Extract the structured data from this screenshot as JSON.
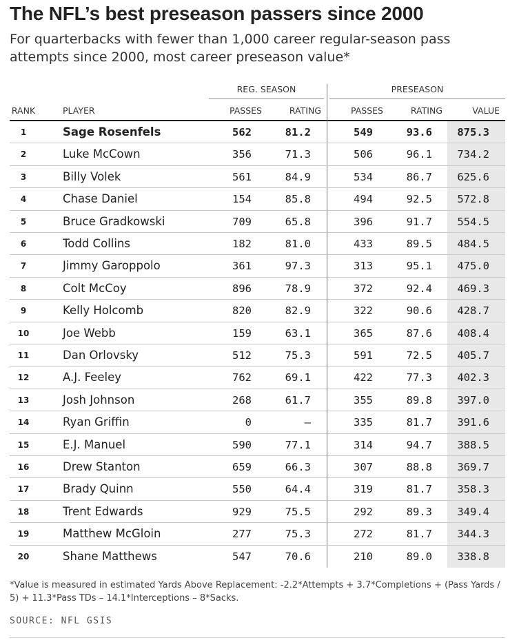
{
  "title": "The NFL’s best preseason passers since 2000",
  "subtitle": "For quarterbacks with fewer than 1,000 career regular-season pass attempts since 2000, most career preseason value*",
  "groups": {
    "reg_season": "REG. SEASON",
    "preseason": "PRESEASON"
  },
  "columns": {
    "rank": "RANK",
    "player": "PLAYER",
    "reg_passes": "PASSES",
    "reg_rating": "RATING",
    "pre_passes": "PASSES",
    "pre_rating": "RATING",
    "value": "VALUE"
  },
  "chart_data": {
    "type": "table",
    "title": "The NFL’s best preseason passers since 2000",
    "columns": [
      "RANK",
      "PLAYER",
      "REG. SEASON PASSES",
      "REG. SEASON RATING",
      "PRESEASON PASSES",
      "PRESEASON RATING",
      "VALUE"
    ],
    "rows": [
      {
        "rank": "1",
        "player": "Sage Rosenfels",
        "reg_passes": "562",
        "reg_rating": "81.2",
        "pre_passes": "549",
        "pre_rating": "93.6",
        "value": "875.3"
      },
      {
        "rank": "2",
        "player": "Luke McCown",
        "reg_passes": "356",
        "reg_rating": "71.3",
        "pre_passes": "506",
        "pre_rating": "96.1",
        "value": "734.2"
      },
      {
        "rank": "3",
        "player": "Billy Volek",
        "reg_passes": "561",
        "reg_rating": "84.9",
        "pre_passes": "534",
        "pre_rating": "86.7",
        "value": "625.6"
      },
      {
        "rank": "4",
        "player": "Chase Daniel",
        "reg_passes": "154",
        "reg_rating": "85.8",
        "pre_passes": "494",
        "pre_rating": "92.5",
        "value": "572.8"
      },
      {
        "rank": "5",
        "player": "Bruce Gradkowski",
        "reg_passes": "709",
        "reg_rating": "65.8",
        "pre_passes": "396",
        "pre_rating": "91.7",
        "value": "554.5"
      },
      {
        "rank": "6",
        "player": "Todd Collins",
        "reg_passes": "182",
        "reg_rating": "81.0",
        "pre_passes": "433",
        "pre_rating": "89.5",
        "value": "484.5"
      },
      {
        "rank": "7",
        "player": "Jimmy Garoppolo",
        "reg_passes": "361",
        "reg_rating": "97.3",
        "pre_passes": "313",
        "pre_rating": "95.1",
        "value": "475.0"
      },
      {
        "rank": "8",
        "player": "Colt McCoy",
        "reg_passes": "896",
        "reg_rating": "78.9",
        "pre_passes": "372",
        "pre_rating": "92.4",
        "value": "469.3"
      },
      {
        "rank": "9",
        "player": "Kelly Holcomb",
        "reg_passes": "820",
        "reg_rating": "82.9",
        "pre_passes": "322",
        "pre_rating": "90.6",
        "value": "428.7"
      },
      {
        "rank": "10",
        "player": "Joe Webb",
        "reg_passes": "159",
        "reg_rating": "63.1",
        "pre_passes": "365",
        "pre_rating": "87.6",
        "value": "408.4"
      },
      {
        "rank": "11",
        "player": "Dan Orlovsky",
        "reg_passes": "512",
        "reg_rating": "75.3",
        "pre_passes": "591",
        "pre_rating": "72.5",
        "value": "405.7"
      },
      {
        "rank": "12",
        "player": "A.J. Feeley",
        "reg_passes": "762",
        "reg_rating": "69.1",
        "pre_passes": "422",
        "pre_rating": "77.3",
        "value": "402.3"
      },
      {
        "rank": "13",
        "player": "Josh Johnson",
        "reg_passes": "268",
        "reg_rating": "61.7",
        "pre_passes": "355",
        "pre_rating": "89.8",
        "value": "397.0"
      },
      {
        "rank": "14",
        "player": "Ryan Griffin",
        "reg_passes": "0",
        "reg_rating": "–",
        "pre_passes": "335",
        "pre_rating": "81.7",
        "value": "391.6"
      },
      {
        "rank": "15",
        "player": "E.J. Manuel",
        "reg_passes": "590",
        "reg_rating": "77.1",
        "pre_passes": "314",
        "pre_rating": "94.7",
        "value": "388.5"
      },
      {
        "rank": "16",
        "player": "Drew Stanton",
        "reg_passes": "659",
        "reg_rating": "66.3",
        "pre_passes": "307",
        "pre_rating": "88.8",
        "value": "369.7"
      },
      {
        "rank": "17",
        "player": "Brady Quinn",
        "reg_passes": "550",
        "reg_rating": "64.4",
        "pre_passes": "319",
        "pre_rating": "81.7",
        "value": "358.3"
      },
      {
        "rank": "18",
        "player": "Trent Edwards",
        "reg_passes": "929",
        "reg_rating": "75.5",
        "pre_passes": "292",
        "pre_rating": "89.3",
        "value": "349.4"
      },
      {
        "rank": "19",
        "player": "Matthew McGloin",
        "reg_passes": "277",
        "reg_rating": "75.3",
        "pre_passes": "272",
        "pre_rating": "81.7",
        "value": "344.3"
      },
      {
        "rank": "20",
        "player": "Shane Matthews",
        "reg_passes": "547",
        "reg_rating": "70.6",
        "pre_passes": "210",
        "pre_rating": "89.0",
        "value": "338.8"
      }
    ]
  },
  "footnote": "*Value is measured in estimated Yards Above Replacement: -2.2*Attempts + 3.7*Completions + (Pass Yards / 5) + 11.3*Pass TDs – 14.1*Interceptions – 8*Sacks.",
  "source": "SOURCE: NFL GSIS",
  "colors": {
    "text": "#222222",
    "value_column_bg": "#e8e8e8",
    "row_rule": "#c9c9c9"
  }
}
